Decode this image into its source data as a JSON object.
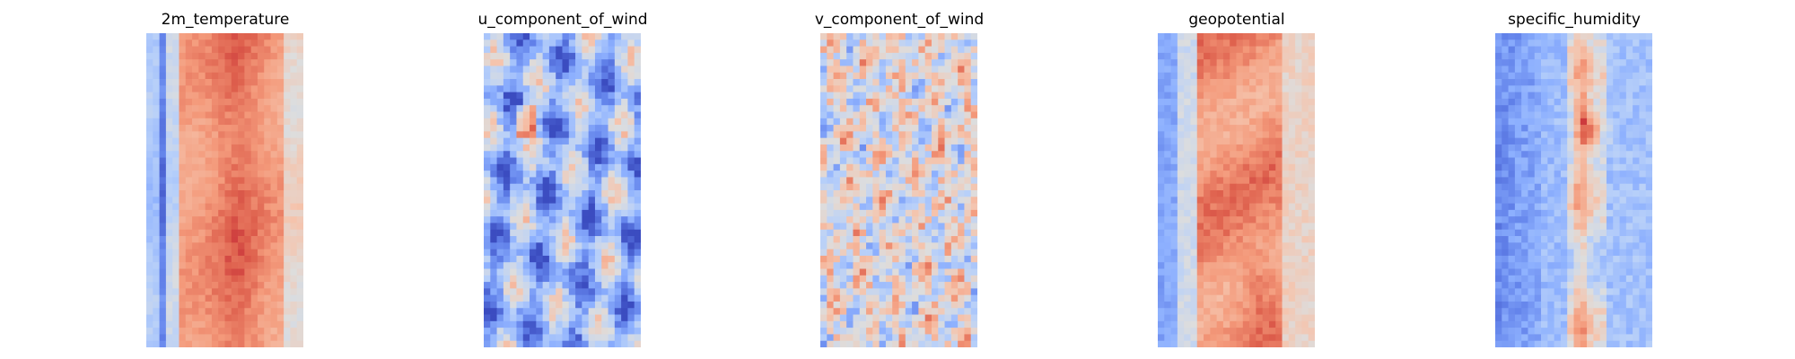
{
  "chart_data": [
    {
      "type": "heatmap",
      "title": "2m_temperature",
      "colormap": "coolwarm",
      "pattern": "temperature",
      "grid": false,
      "axes_visible": false,
      "rows": 48,
      "cols": 24
    },
    {
      "type": "heatmap",
      "title": "u_component_of_wind",
      "colormap": "coolwarm",
      "pattern": "u_wind",
      "grid": false,
      "axes_visible": false,
      "rows": 48,
      "cols": 24
    },
    {
      "type": "heatmap",
      "title": "v_component_of_wind",
      "colormap": "coolwarm",
      "pattern": "v_wind",
      "grid": false,
      "axes_visible": false,
      "rows": 48,
      "cols": 24
    },
    {
      "type": "heatmap",
      "title": "geopotential",
      "colormap": "coolwarm",
      "pattern": "geopotential",
      "grid": false,
      "axes_visible": false,
      "rows": 48,
      "cols": 24
    },
    {
      "type": "heatmap",
      "title": "specific_humidity",
      "colormap": "coolwarm",
      "pattern": "humidity",
      "grid": false,
      "axes_visible": false,
      "rows": 48,
      "cols": 24
    }
  ]
}
